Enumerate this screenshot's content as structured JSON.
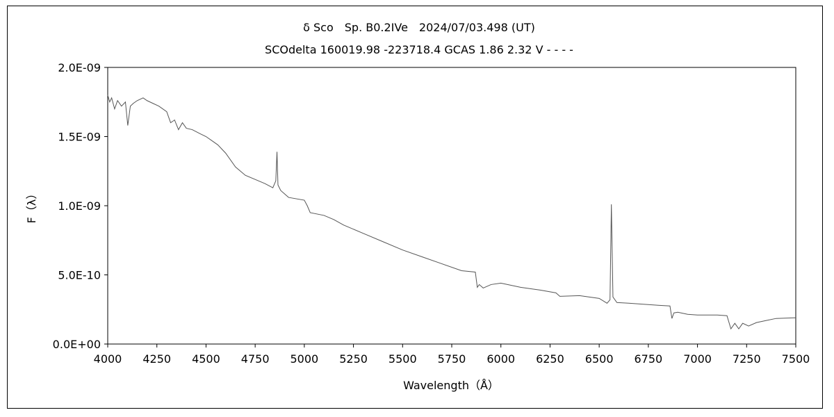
{
  "chart_data": {
    "type": "line",
    "title": "δ Sco　Sp. B0.2IVe　2024/07/03.498 (UT)",
    "subtitle": "SCOdelta 160019.98 -223718.4 GCAS 1.86 2.32 V - - - -",
    "xlabel": "Wavelength（Å）",
    "ylabel": "F（λ）",
    "xlim": [
      4000,
      7500
    ],
    "ylim": [
      0,
      2e-09
    ],
    "x_ticks": [
      4000,
      4250,
      4500,
      4750,
      5000,
      5250,
      5500,
      5750,
      6000,
      6250,
      6500,
      6750,
      7000,
      7250,
      7500
    ],
    "x_tick_labels": [
      "4000",
      "4250",
      "4500",
      "4750",
      "5000",
      "5250",
      "5500",
      "5750",
      "6000",
      "6250",
      "6500",
      "6750",
      "7000",
      "7250",
      "7500"
    ],
    "y_ticks": [
      0,
      5e-10,
      1e-09,
      1.5e-09,
      2e-09
    ],
    "y_tick_labels": [
      "0.0E+00",
      "5.0E-10",
      "1.0E-09",
      "1.5E-09",
      "2.0E-09"
    ],
    "grid": false,
    "legend": "none",
    "line_color": "#555555",
    "series": [
      {
        "x": [
          4000,
          4010,
          4020,
          4035,
          4050,
          4070,
          4090,
          4102,
          4115,
          4130,
          4150,
          4180,
          4200,
          4230,
          4260,
          4300,
          4320,
          4340,
          4360,
          4380,
          4400,
          4430,
          4471,
          4500,
          4530,
          4560,
          4600,
          4650,
          4700,
          4750,
          4800,
          4840,
          4855,
          4861,
          4866,
          4880,
          4920,
          5000,
          5015,
          5030,
          5100,
          5150,
          5200,
          5300,
          5400,
          5500,
          5600,
          5700,
          5800,
          5870,
          5880,
          5890,
          5910,
          5950,
          6000,
          6100,
          6200,
          6280,
          6300,
          6400,
          6500,
          6540,
          6555,
          6562,
          6570,
          6590,
          6650,
          6800,
          6860,
          6870,
          6880,
          6900,
          6950,
          7000,
          7100,
          7150,
          7170,
          7190,
          7210,
          7230,
          7260,
          7300,
          7350,
          7400,
          7500
        ],
        "y": [
          1.8e-09,
          1.75e-09,
          1.78e-09,
          1.7e-09,
          1.76e-09,
          1.72e-09,
          1.75e-09,
          1.58e-09,
          1.72e-09,
          1.74e-09,
          1.76e-09,
          1.78e-09,
          1.76e-09,
          1.74e-09,
          1.72e-09,
          1.68e-09,
          1.6e-09,
          1.62e-09,
          1.55e-09,
          1.6e-09,
          1.56e-09,
          1.55e-09,
          1.52e-09,
          1.5e-09,
          1.47e-09,
          1.44e-09,
          1.38e-09,
          1.28e-09,
          1.22e-09,
          1.19e-09,
          1.16e-09,
          1.13e-09,
          1.18e-09,
          1.39e-09,
          1.15e-09,
          1.11e-09,
          1.06e-09,
          1.04e-09,
          1e-09,
          9.5e-10,
          9.3e-10,
          9e-10,
          8.6e-10,
          8e-10,
          7.4e-10,
          6.8e-10,
          6.3e-10,
          5.8e-10,
          5.3e-10,
          5.2e-10,
          4.1e-10,
          4.3e-10,
          4.05e-10,
          4.3e-10,
          4.4e-10,
          4.1e-10,
          3.9e-10,
          3.7e-10,
          3.45e-10,
          3.5e-10,
          3.3e-10,
          2.95e-10,
          3.2e-10,
          1.01e-09,
          3.4e-10,
          3e-10,
          2.95e-10,
          2.8e-10,
          2.75e-10,
          1.85e-10,
          2.25e-10,
          2.3e-10,
          2.15e-10,
          2.1e-10,
          2.1e-10,
          2.05e-10,
          1.1e-10,
          1.5e-10,
          1.1e-10,
          1.5e-10,
          1.3e-10,
          1.55e-10,
          1.7e-10,
          1.85e-10,
          1.9e-10
        ]
      }
    ]
  }
}
